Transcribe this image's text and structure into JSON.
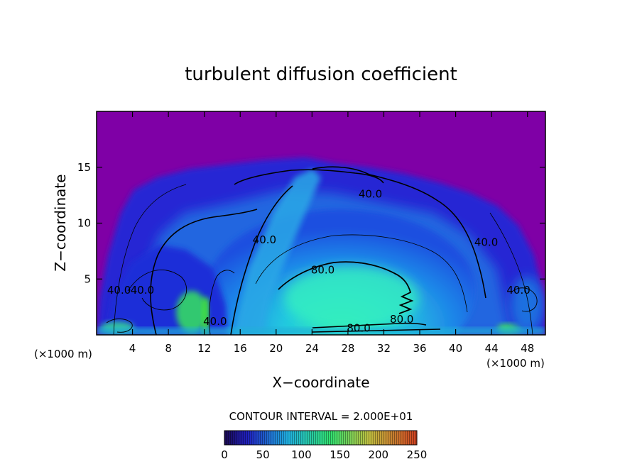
{
  "chart_data": {
    "type": "heatmap",
    "title": "turbulent diffusion coefficient",
    "xlabel": "X−coordinate",
    "ylabel": "Z−coordinate",
    "x_unit_left": "(×1000 m)",
    "x_unit_right": "(×1000 m)",
    "xlim": [
      0,
      50
    ],
    "ylim": [
      0,
      20
    ],
    "x_ticks": [
      4,
      8,
      12,
      16,
      20,
      24,
      28,
      32,
      36,
      40,
      44,
      48
    ],
    "y_ticks": [
      5,
      10,
      15
    ],
    "contour_interval_text": "CONTOUR INTERVAL = 2.000E+01",
    "contour_labels": [
      {
        "text": "40.0",
        "x": 30.5,
        "z": 12.6
      },
      {
        "text": "80.0",
        "x": 25.2,
        "z": 5.8
      },
      {
        "text": "80.0",
        "x": 34.0,
        "z": 1.4
      },
      {
        "text": "80.0",
        "x": 29.2,
        "z": 0.6
      },
      {
        "text": "40.0",
        "x": 43.4,
        "z": 8.3
      },
      {
        "text": "40.0",
        "x": 18.7,
        "z": 8.5
      },
      {
        "text": "40.0",
        "x": 2.5,
        "z": 4.0
      },
      {
        "text": "40.0",
        "x": 5.1,
        "z": 4.0
      },
      {
        "text": "40.0",
        "x": 47.0,
        "z": 4.0
      },
      {
        "text": "40.0",
        "x": 13.2,
        "z": 1.2
      }
    ],
    "colorbar": {
      "min": 0,
      "max": 250,
      "tick_labels": [
        "0",
        "50",
        "100",
        "150",
        "200",
        "250"
      ],
      "colors": [
        "#1a0a50",
        "#2020c0",
        "#20b0e0",
        "#30e070",
        "#c0c040",
        "#d04020"
      ]
    },
    "colors": {
      "background_field": "#7f00a6",
      "low": "#1f1fd6",
      "mid": "#22a6ee",
      "high": "#2fe0b0"
    }
  }
}
